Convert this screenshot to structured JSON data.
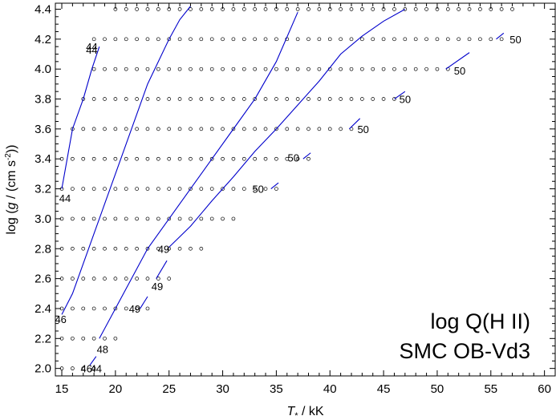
{
  "chart_data": {
    "type": "line",
    "xlabel_symbol": "T",
    "xlabel_subscript": "*",
    "xlabel_unit": " / kK",
    "ylabel_prefix": "log (",
    "ylabel_var": "g",
    "ylabel_mid": " / (cm s",
    "ylabel_exp": "-2",
    "ylabel_suffix": "))",
    "xlim": [
      14.4,
      61.0
    ],
    "ylim": [
      1.95,
      4.44
    ],
    "xticks": [
      15,
      20,
      25,
      30,
      35,
      40,
      45,
      50,
      55,
      60
    ],
    "xtick_labels": [
      "15",
      "20",
      "25",
      "30",
      "35",
      "40",
      "45",
      "50",
      "55",
      "60"
    ],
    "yticks": [
      2.0,
      2.2,
      2.4,
      2.6,
      2.8,
      3.0,
      3.2,
      3.4,
      3.6,
      3.8,
      4.0,
      4.2,
      4.4
    ],
    "ytick_labels": [
      "2.0",
      "2.2",
      "2.4",
      "2.6",
      "2.8",
      "3.0",
      "3.2",
      "3.4",
      "3.6",
      "3.8",
      "4.0",
      "4.2",
      "4.4"
    ],
    "corner_text": [
      "log Q(H II)",
      "SMC OB-Vd3"
    ],
    "line_color": "#0000cc",
    "grid_rows": [
      {
        "logg": 2.0,
        "teff_min": 15,
        "teff_max": 18
      },
      {
        "logg": 2.2,
        "teff_min": 15,
        "teff_max": 20
      },
      {
        "logg": 2.4,
        "teff_min": 15,
        "teff_max": 23
      },
      {
        "logg": 2.6,
        "teff_min": 15,
        "teff_max": 25
      },
      {
        "logg": 2.8,
        "teff_min": 15,
        "teff_max": 28
      },
      {
        "logg": 3.0,
        "teff_min": 15,
        "teff_max": 31
      },
      {
        "logg": 3.2,
        "teff_min": 15,
        "teff_max": 35
      },
      {
        "logg": 3.4,
        "teff_min": 15,
        "teff_max": 38
      },
      {
        "logg": 3.6,
        "teff_min": 16,
        "teff_max": 42
      },
      {
        "logg": 3.8,
        "teff_min": 17,
        "teff_max": 46
      },
      {
        "logg": 4.0,
        "teff_min": 18,
        "teff_max": 51
      },
      {
        "logg": 4.2,
        "teff_min": 18,
        "teff_max": 56
      },
      {
        "logg": 4.4,
        "teff_min": 20,
        "teff_max": 57
      }
    ],
    "series": [
      {
        "points": [
          [
            15.0,
            3.2
          ],
          [
            15.5,
            3.4
          ],
          [
            16.0,
            3.6
          ],
          [
            17.0,
            3.8
          ],
          [
            17.8,
            4.0
          ],
          [
            18.5,
            4.15
          ]
        ]
      },
      {
        "points": [
          [
            15.0,
            2.36
          ],
          [
            16.0,
            2.5
          ],
          [
            17.0,
            2.7
          ],
          [
            18.0,
            2.9
          ],
          [
            19.0,
            3.1
          ],
          [
            20.0,
            3.3
          ],
          [
            21.0,
            3.5
          ],
          [
            22.0,
            3.7
          ],
          [
            23.0,
            3.9
          ],
          [
            24.0,
            4.05
          ],
          [
            25.0,
            4.2
          ],
          [
            26.0,
            4.33
          ],
          [
            27.0,
            4.42
          ]
        ]
      },
      {
        "points": [
          [
            18.5,
            2.2
          ],
          [
            20.0,
            2.4
          ],
          [
            21.5,
            2.6
          ],
          [
            23.0,
            2.8
          ],
          [
            25.0,
            3.0
          ],
          [
            27.0,
            3.2
          ],
          [
            29.0,
            3.4
          ],
          [
            31.0,
            3.6
          ],
          [
            33.0,
            3.8
          ],
          [
            35.0,
            4.05
          ],
          [
            37.0,
            4.38
          ]
        ]
      },
      {
        "points": [
          [
            25.0,
            2.81
          ],
          [
            27.0,
            2.95
          ],
          [
            29.0,
            3.12
          ],
          [
            31.0,
            3.28
          ],
          [
            33.0,
            3.45
          ],
          [
            35.0,
            3.6
          ],
          [
            37.0,
            3.76
          ],
          [
            39.0,
            3.92
          ],
          [
            41.0,
            4.1
          ],
          [
            43.0,
            4.22
          ],
          [
            45.0,
            4.32
          ],
          [
            47.0,
            4.4
          ]
        ]
      },
      {
        "points": [
          [
            17.6,
            2.02
          ],
          [
            18.2,
            2.08
          ]
        ]
      },
      {
        "points": [
          [
            22.3,
            2.4
          ],
          [
            23.0,
            2.48
          ]
        ]
      },
      {
        "points": [
          [
            23.8,
            2.6
          ],
          [
            24.8,
            2.72
          ]
        ]
      },
      {
        "points": [
          [
            34.5,
            3.2
          ],
          [
            35.2,
            3.24
          ]
        ]
      },
      {
        "points": [
          [
            37.5,
            3.4
          ],
          [
            38.2,
            3.44
          ]
        ]
      },
      {
        "points": [
          [
            41.8,
            3.6
          ],
          [
            42.8,
            3.67
          ]
        ]
      },
      {
        "points": [
          [
            46.0,
            3.8
          ],
          [
            47.0,
            3.85
          ]
        ]
      },
      {
        "points": [
          [
            50.8,
            4.0
          ],
          [
            53.0,
            4.11
          ]
        ]
      },
      {
        "points": [
          [
            55.5,
            4.2
          ],
          [
            56.2,
            4.24
          ]
        ]
      }
    ],
    "labels": [
      {
        "text": "44",
        "x": 17.8,
        "y": 4.15
      },
      {
        "text": "44",
        "x": 17.8,
        "y": 4.13
      },
      {
        "text": "44",
        "x": 15.3,
        "y": 3.14
      },
      {
        "text": "46",
        "x": 14.9,
        "y": 2.33
      },
      {
        "text": "48",
        "x": 18.8,
        "y": 2.13
      },
      {
        "text": "46",
        "x": 17.3,
        "y": 2.0
      },
      {
        "text": "44",
        "x": 18.2,
        "y": 2.0
      },
      {
        "text": "49",
        "x": 21.8,
        "y": 2.4
      },
      {
        "text": "49",
        "x": 23.9,
        "y": 2.55
      },
      {
        "text": "49",
        "x": 24.5,
        "y": 2.8
      },
      {
        "text": "50",
        "x": 33.3,
        "y": 3.2
      },
      {
        "text": "50",
        "x": 36.6,
        "y": 3.41
      },
      {
        "text": "50",
        "x": 43.1,
        "y": 3.6
      },
      {
        "text": "50",
        "x": 47.0,
        "y": 3.8
      },
      {
        "text": "50",
        "x": 52.1,
        "y": 3.99
      },
      {
        "text": "50",
        "x": 57.3,
        "y": 4.2
      }
    ]
  }
}
